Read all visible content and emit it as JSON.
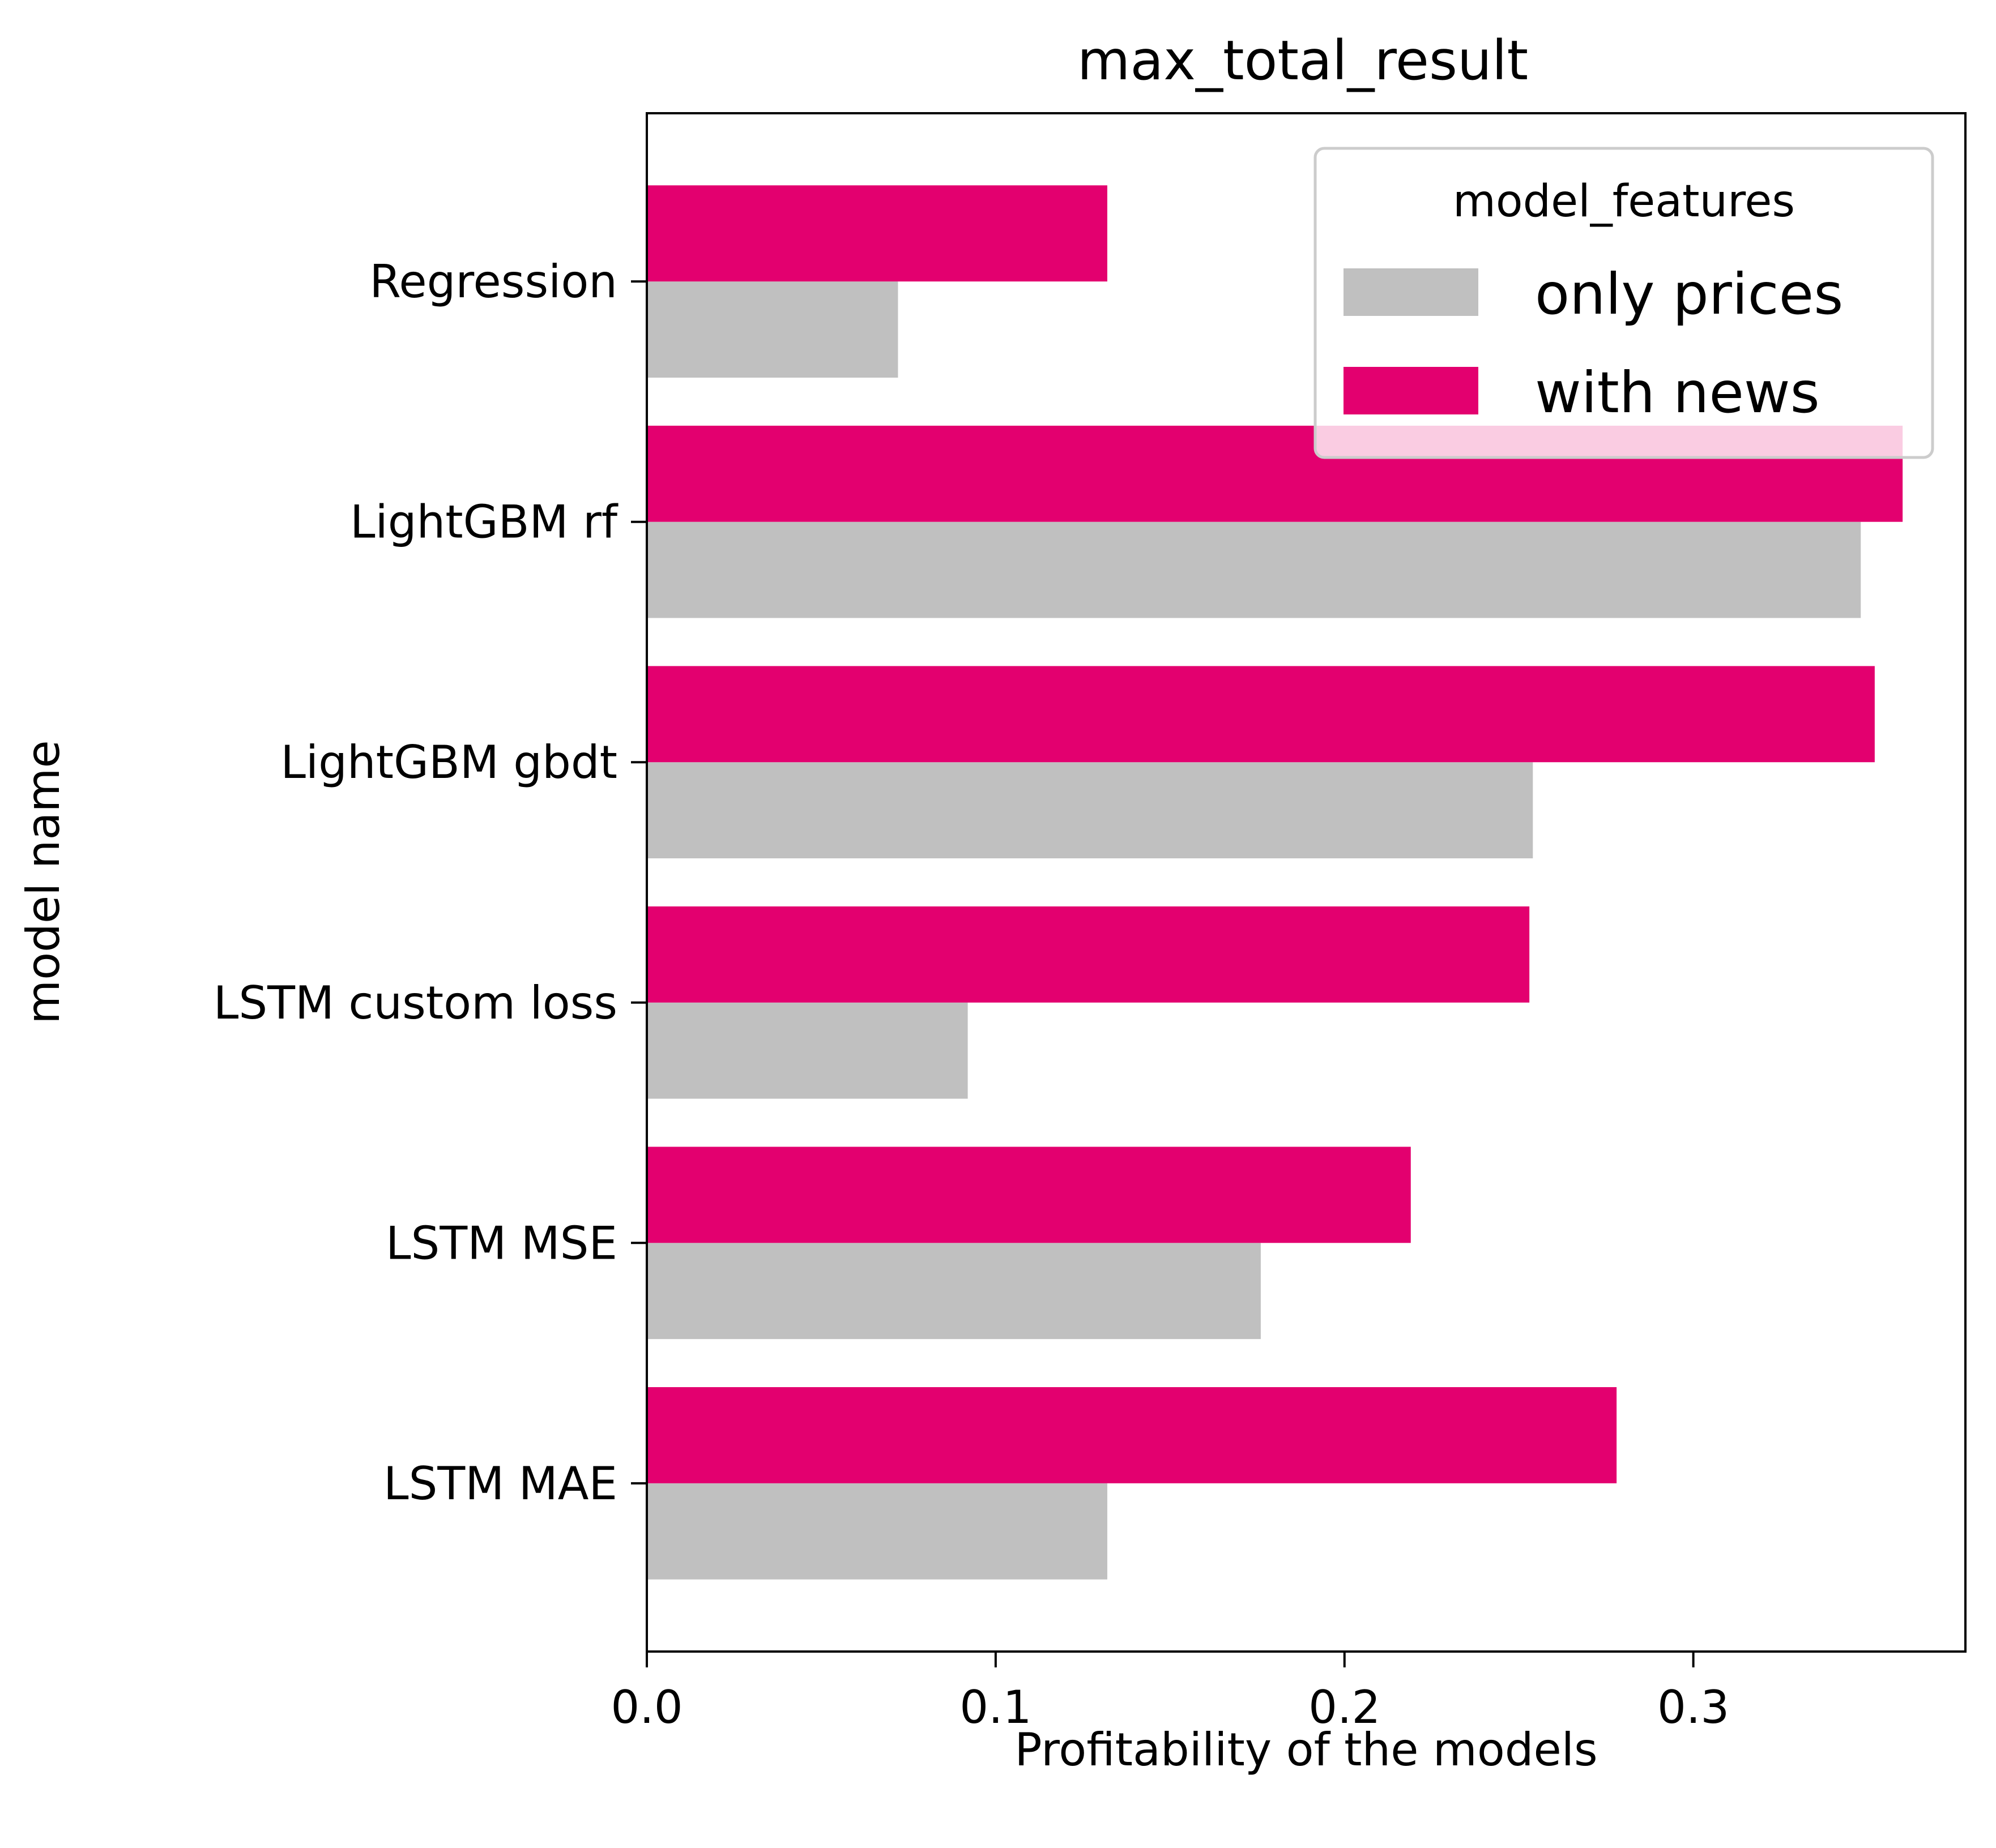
{
  "chart_data": {
    "type": "bar",
    "orientation": "horizontal",
    "title": "max_total_result",
    "xlabel": "Profitability of the models",
    "ylabel": "model name",
    "categories": [
      "Regression",
      "LightGBM rf",
      "LightGBM gbdt",
      "LSTM custom loss",
      "LSTM MSE",
      "LSTM MAE"
    ],
    "series": [
      {
        "name": "only prices",
        "color": "#c0c0c0",
        "values": [
          0.072,
          0.348,
          0.254,
          0.092,
          0.176,
          0.132
        ]
      },
      {
        "name": "with news",
        "color": "#e3006f",
        "values": [
          0.132,
          0.36,
          0.352,
          0.253,
          0.219,
          0.278
        ]
      }
    ],
    "xlim": [
      0.0,
      0.378
    ],
    "xticks": [
      0.0,
      0.1,
      0.2,
      0.3
    ],
    "xtick_labels": [
      "0.0",
      "0.1",
      "0.2",
      "0.3"
    ],
    "grid": false,
    "legend": {
      "title": "model_features",
      "placement": "top-right",
      "entries": [
        "only prices",
        "with news"
      ]
    }
  }
}
